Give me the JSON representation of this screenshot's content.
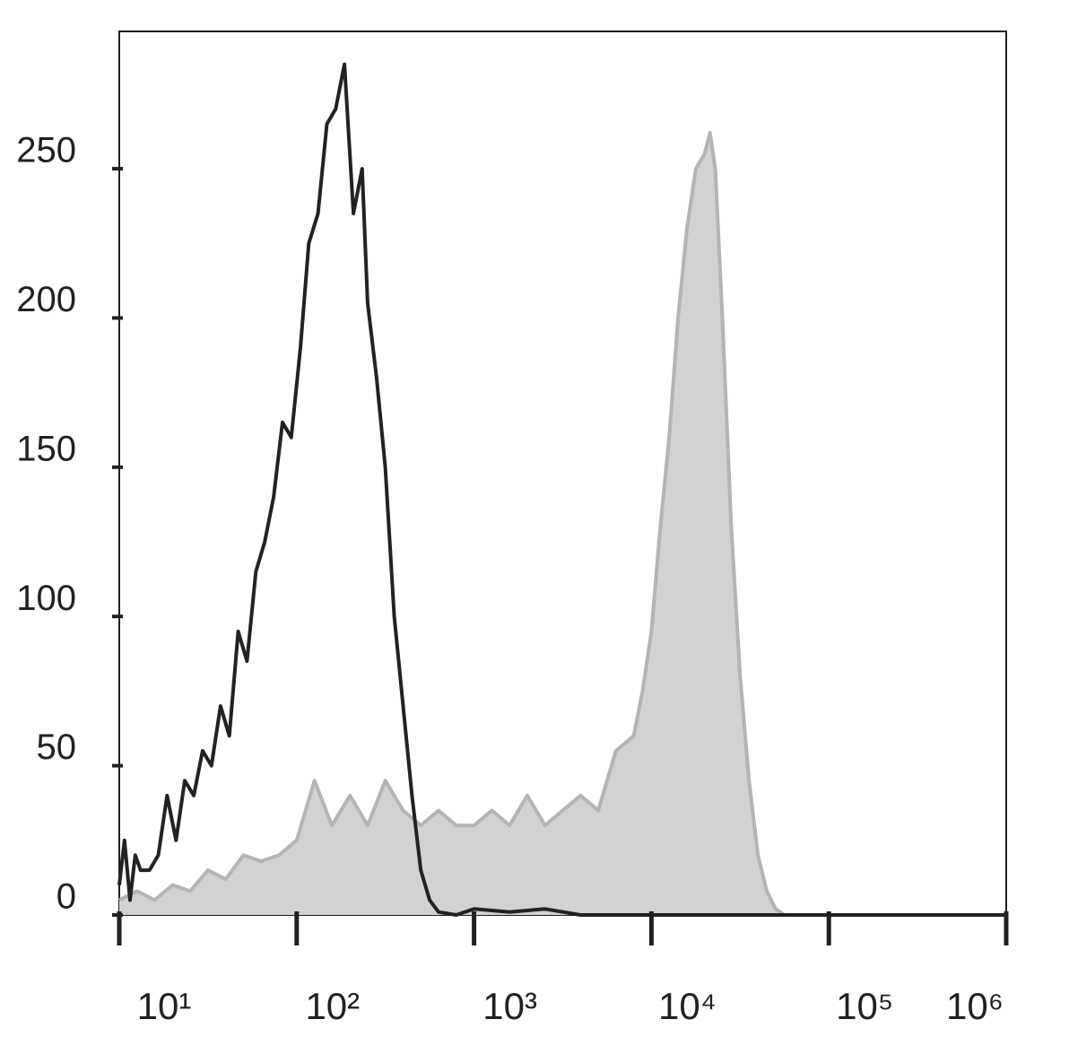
{
  "chart_data": {
    "type": "histogram-overlay",
    "xscale": "log",
    "xlim": [
      10,
      1000000
    ],
    "xticks": [
      {
        "value": 10,
        "label": "10¹"
      },
      {
        "value": 100,
        "label": "10²"
      },
      {
        "value": 1000,
        "label": "10³"
      },
      {
        "value": 10000,
        "label": "10⁴"
      },
      {
        "value": 100000,
        "label": "10⁵"
      },
      {
        "value": 1000000,
        "label": "10⁶"
      }
    ],
    "ylim": [
      0,
      296
    ],
    "yticks": [
      0,
      50,
      100,
      150,
      200,
      250
    ],
    "series": [
      {
        "name": null,
        "color": "#b4b4b6",
        "fill": "#d2d2d3",
        "filled": true,
        "x": [
          10,
          12.6,
          15.8,
          20,
          25.1,
          31.6,
          39.8,
          50.1,
          63.1,
          79.4,
          100,
          126,
          158,
          200,
          251,
          316,
          398,
          501,
          631,
          794,
          1000,
          1259,
          1585,
          1995,
          2512,
          3162,
          3981,
          5012,
          6310,
          7943,
          8913,
          10000,
          11220,
          12589,
          14125,
          15849,
          17783,
          19953,
          21380,
          22909,
          25119,
          28184,
          31623,
          35481,
          39811,
          44668,
          50119,
          56234,
          100000,
          1000000
        ],
        "values": [
          5,
          8,
          5,
          10,
          8,
          15,
          12,
          20,
          18,
          20,
          25,
          45,
          30,
          40,
          30,
          45,
          35,
          30,
          35,
          30,
          30,
          35,
          30,
          40,
          30,
          35,
          40,
          35,
          55,
          60,
          75,
          95,
          130,
          160,
          200,
          230,
          250,
          255,
          262,
          250,
          200,
          130,
          80,
          45,
          20,
          8,
          2,
          0,
          0,
          0
        ]
      },
      {
        "name": null,
        "color": "#222222",
        "filled": false,
        "x": [
          10,
          10.7,
          11.5,
          12.3,
          13.2,
          14.8,
          16.6,
          18.6,
          20.9,
          23.4,
          26.3,
          29.5,
          33.1,
          37.2,
          41.7,
          46.8,
          52.5,
          58.9,
          66.1,
          74.1,
          83.2,
          93.3,
          105,
          117,
          132,
          148,
          166,
          186,
          209,
          234,
          251,
          282,
          316,
          355,
          398,
          447,
          501,
          562,
          631,
          794,
          1000,
          1585,
          2512,
          3981,
          10000,
          100000,
          1000000
        ],
        "values": [
          10,
          25,
          5,
          20,
          15,
          15,
          20,
          40,
          25,
          45,
          40,
          55,
          50,
          70,
          60,
          95,
          85,
          115,
          125,
          140,
          165,
          160,
          190,
          225,
          235,
          265,
          270,
          285,
          235,
          250,
          205,
          180,
          150,
          100,
          70,
          40,
          15,
          5,
          1,
          0,
          2,
          1,
          2,
          0,
          0,
          0,
          0
        ]
      }
    ]
  }
}
